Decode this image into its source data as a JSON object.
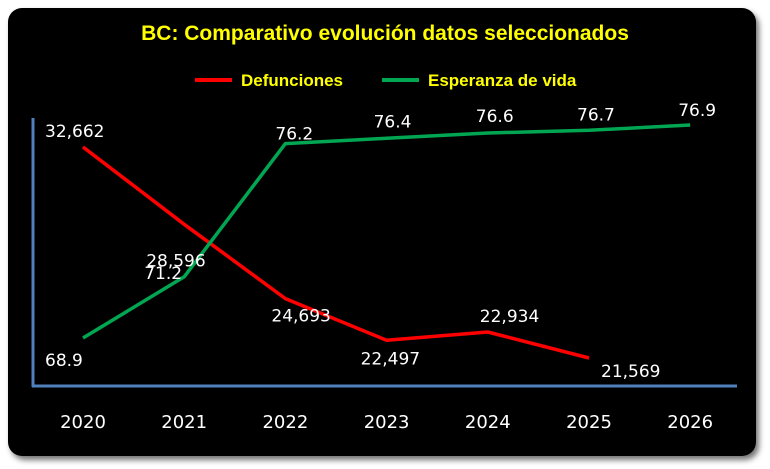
{
  "chart_data": {
    "type": "line",
    "title": "BC: Comparativo evolución datos seleccionados",
    "categories": [
      "2020",
      "2021",
      "2022",
      "2023",
      "2024",
      "2025",
      "2026"
    ],
    "series": [
      {
        "name": "Defunciones",
        "color": "#ff0000",
        "values": [
          32662,
          28596,
          24693,
          22497,
          22934,
          21569,
          null
        ],
        "labels": [
          "32,662",
          "28,596",
          "24,693",
          "22,497",
          "22,934",
          "21,569",
          ""
        ]
      },
      {
        "name": "Esperanza de vida",
        "color": "#00a651",
        "values": [
          68.9,
          71.2,
          76.2,
          76.4,
          76.6,
          76.7,
          76.9
        ],
        "labels": [
          "68.9",
          "71.2",
          "76.2",
          "76.4",
          "76.6",
          "76.7",
          "76.9"
        ]
      }
    ],
    "legend_position": "top",
    "grid": false,
    "axis_color": "#4f81bd"
  }
}
